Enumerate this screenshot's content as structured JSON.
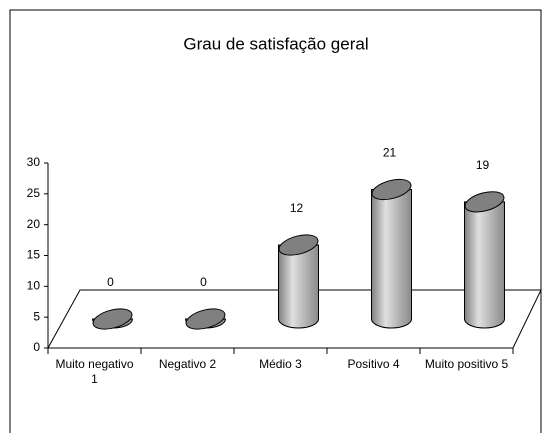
{
  "chart_data": {
    "type": "bar",
    "title": "Grau de satisfação geral",
    "categories": [
      "Muito negativo 1",
      "Negativo 2",
      "Médio 3",
      "Positivo 4",
      "Muito positivo 5"
    ],
    "values": [
      0,
      0,
      12,
      21,
      19
    ],
    "color": "#a6a6a6",
    "ylim": [
      0,
      30
    ],
    "yticks": [
      0,
      5,
      10,
      15,
      20,
      25,
      30
    ]
  }
}
